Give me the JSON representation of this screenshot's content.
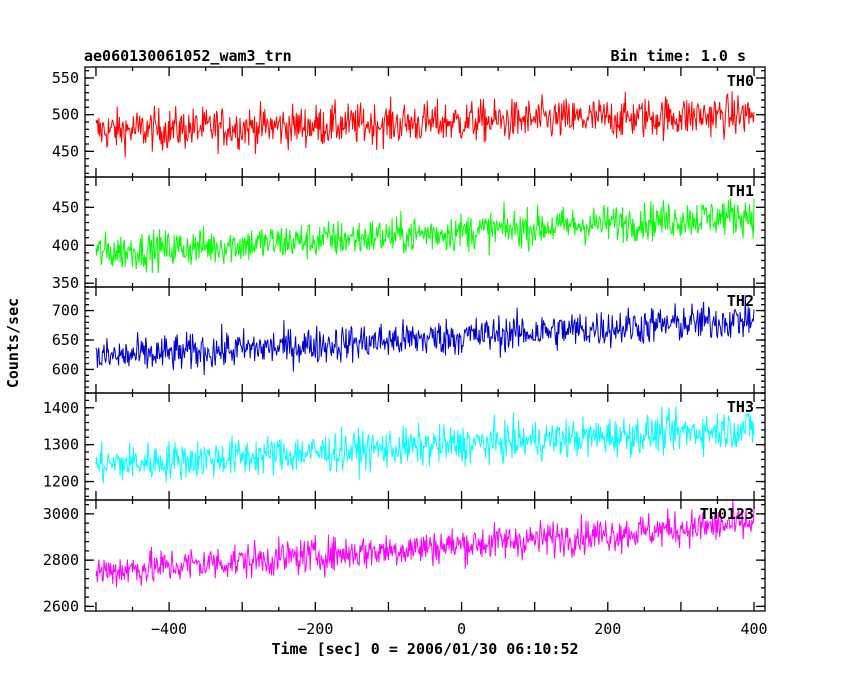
{
  "chart_data": {
    "type": "line",
    "title": "ae060130061052_wam3_trn",
    "subtitle": "Bin time: 1.0 s",
    "xlabel": "Time [sec] 0 = 2006/01/30 06:10:52",
    "ylabel": "Counts/sec",
    "xlim": [
      -515,
      415
    ],
    "x_ticks": [
      -400,
      -200,
      0,
      200,
      400
    ],
    "x_tick_labels": [
      "−400",
      "−200",
      "0",
      "200",
      "400"
    ],
    "x_range": [
      -500,
      400
    ],
    "grid": false,
    "series": [
      {
        "name": "TH0",
        "color": "#ff0000",
        "ylim": [
          415,
          565
        ],
        "y_ticks": [
          450,
          500,
          550
        ],
        "y_tick_labels": [
          "450",
          "500",
          "550"
        ],
        "trend_start": 478,
        "trend_end": 500,
        "noise": 24
      },
      {
        "name": "TH1",
        "color": "#00ff00",
        "ylim": [
          345,
          490
        ],
        "y_ticks": [
          350,
          400,
          450
        ],
        "y_tick_labels": [
          "350",
          "400",
          "450"
        ],
        "trend_start": 390,
        "trend_end": 440,
        "noise": 21
      },
      {
        "name": "TH2",
        "color": "#0000cc",
        "ylim": [
          560,
          740
        ],
        "y_ticks": [
          600,
          650,
          700
        ],
        "y_tick_labels": [
          "600",
          "650",
          "700"
        ],
        "trend_start": 620,
        "trend_end": 685,
        "noise": 27
      },
      {
        "name": "TH3",
        "color": "#00ffff",
        "ylim": [
          1150,
          1440
        ],
        "y_ticks": [
          1200,
          1300,
          1400
        ],
        "y_tick_labels": [
          "1200",
          "1300",
          "1400"
        ],
        "trend_start": 1245,
        "trend_end": 1345,
        "noise": 45
      },
      {
        "name": "TH0123",
        "color": "#ff00ff",
        "ylim": [
          2580,
          3060
        ],
        "y_ticks": [
          2600,
          2800,
          3000
        ],
        "y_tick_labels": [
          "2600",
          "2800",
          "3000"
        ],
        "trend_start": 2750,
        "trend_end": 2960,
        "noise": 65
      }
    ]
  }
}
